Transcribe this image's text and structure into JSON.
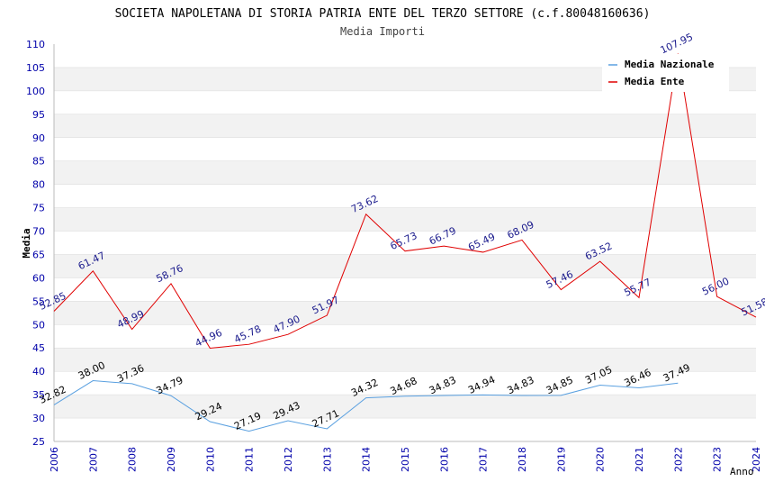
{
  "chart_data": {
    "type": "line",
    "title": "SOCIETA NAPOLETANA DI STORIA PATRIA ENTE DEL TERZO SETTORE (c.f.80048160636)",
    "subtitle": "Media Importi",
    "xlabel": "Anno",
    "ylabel": "Media",
    "categories": [
      "2006",
      "2007",
      "2008",
      "2009",
      "2010",
      "2011",
      "2012",
      "2013",
      "2014",
      "2015",
      "2016",
      "2017",
      "2018",
      "2019",
      "2020",
      "2021",
      "2022",
      "2023",
      "2024"
    ],
    "ylim": [
      25,
      110
    ],
    "yticks": [
      25,
      30,
      35,
      40,
      45,
      50,
      55,
      60,
      65,
      70,
      75,
      80,
      85,
      90,
      95,
      100,
      105,
      110
    ],
    "grid": "horizontal bands",
    "legend_position": "top-right",
    "series": [
      {
        "name": "Media Nazionale",
        "color": "#5aa0e0",
        "label_color": "#000000",
        "values": [
          32.82,
          38.0,
          37.36,
          34.79,
          29.24,
          27.19,
          29.43,
          27.71,
          34.32,
          34.68,
          34.83,
          34.94,
          34.83,
          34.85,
          37.05,
          36.46,
          37.49,
          null,
          null
        ],
        "labels": [
          "32.82",
          "38.00",
          "37.36",
          "34.79",
          "29.24",
          "27.19",
          "29.43",
          "27.71",
          "34.32",
          "34.68",
          "34.83",
          "34.94",
          "34.83",
          "34.85",
          "37.05",
          "36.46",
          "37.49",
          null,
          null
        ]
      },
      {
        "name": "Media Ente",
        "color": "#e00000",
        "label_color": "#1a1a8c",
        "values": [
          52.85,
          61.47,
          48.99,
          58.76,
          44.96,
          45.78,
          47.9,
          51.97,
          73.62,
          65.73,
          66.79,
          65.49,
          68.09,
          57.46,
          63.52,
          55.77,
          107.95,
          56.0,
          51.58
        ],
        "labels": [
          "52.85",
          "61.47",
          "48.99",
          "58.76",
          "44.96",
          "45.78",
          "47.90",
          "51.97",
          "73.62",
          "65.73",
          "66.79",
          "65.49",
          "68.09",
          "57.46",
          "63.52",
          "55.77",
          "107.95",
          "56.00",
          "51.58"
        ]
      }
    ]
  },
  "colors": {
    "band": "#f2f2f2",
    "axis_text": "#0000aa",
    "title_text": "#000000",
    "grid": "#d8d8d8"
  }
}
